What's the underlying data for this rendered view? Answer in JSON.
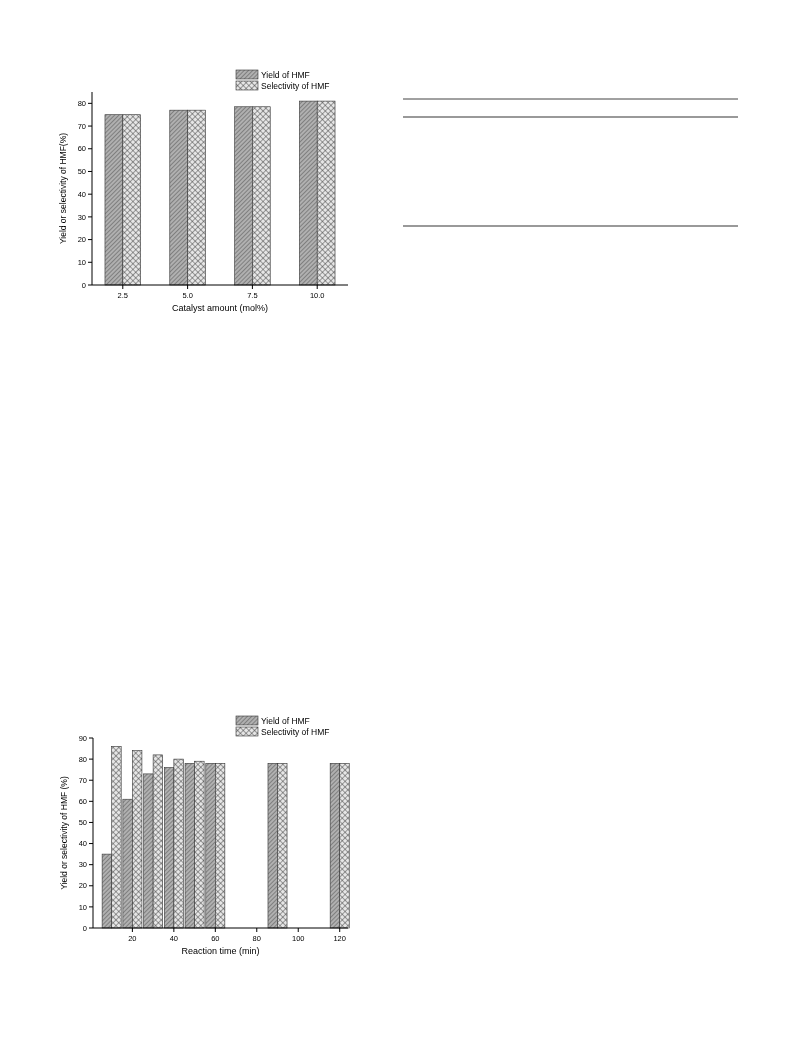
{
  "chart_data": [
    {
      "type": "bar",
      "xlabel": "Catalyst amount (mol%)",
      "ylabel": "Yield or selectivity of HMF(%)",
      "categories": [
        "2.5",
        "5.0",
        "7.5",
        "10.0"
      ],
      "series": [
        {
          "name": "Yield of HMF",
          "color": "#333333",
          "values": [
            75,
            77,
            78.5,
            81
          ]
        },
        {
          "name": "Selectivity of HMF",
          "color": "#333333",
          "values": [
            75,
            77,
            78.5,
            81
          ]
        }
      ],
      "ylim": [
        0,
        85
      ],
      "yticks": [
        0,
        10,
        20,
        30,
        40,
        50,
        60,
        70,
        80
      ],
      "legend": "top right"
    },
    {
      "type": "bar",
      "xlabel": "Reaction time (min)",
      "ylabel": "Yield or selectivity of HMF (%)",
      "x": [
        10,
        20,
        30,
        40,
        50,
        60,
        90,
        120
      ],
      "series": [
        {
          "name": "Yield of HMF",
          "color": "#333333",
          "values": [
            35,
            61,
            73,
            76,
            78,
            78,
            78,
            78
          ]
        },
        {
          "name": "Selectivity of HMF",
          "color": "#333333",
          "values": [
            86,
            84,
            82,
            80,
            79,
            78,
            78,
            78
          ]
        }
      ],
      "xlim": [
        1,
        124
      ],
      "xticks": [
        20,
        40,
        60,
        80,
        100,
        120
      ],
      "ylim": [
        0,
        90
      ],
      "yticks": [
        0,
        10,
        20,
        30,
        40,
        50,
        60,
        70,
        80,
        90
      ],
      "legend": "top right"
    }
  ]
}
